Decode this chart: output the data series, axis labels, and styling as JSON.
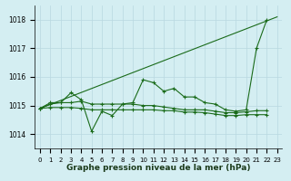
{
  "background_color": "#d4eef2",
  "grid_color": "#b8d8e0",
  "line_color": "#1a6b1a",
  "title": "Graphe pression niveau de la mer (hPa)",
  "ylim": [
    1013.5,
    1018.5
  ],
  "xlim": [
    -0.5,
    23.5
  ],
  "yticks": [
    1014,
    1015,
    1016,
    1017,
    1018
  ],
  "xtick_labels": [
    "0",
    "1",
    "2",
    "3",
    "4",
    "5",
    "6",
    "7",
    "8",
    "9",
    "10",
    "11",
    "12",
    "13",
    "14",
    "15",
    "16",
    "17",
    "18",
    "19",
    "20",
    "21",
    "22",
    "23"
  ],
  "s1_y": [
    1014.9,
    1015.1,
    1015.1,
    1015.45,
    1015.2,
    1014.1,
    1014.8,
    1014.65,
    1015.05,
    1015.1,
    1015.9,
    1015.8,
    1015.5,
    1015.6,
    1015.3,
    1015.3,
    1015.1,
    1015.05,
    1014.85,
    1014.8,
    1014.85,
    1017.0,
    1018.0
  ],
  "s2_y": [
    1014.9,
    1015.05,
    1015.1,
    1015.1,
    1015.15,
    1015.05,
    1015.05,
    1015.05,
    1015.05,
    1015.05,
    1015.0,
    1015.0,
    1014.95,
    1014.9,
    1014.85,
    1014.85,
    1014.85,
    1014.8,
    1014.75,
    1014.75,
    1014.78,
    1014.82,
    1014.82
  ],
  "s3_y": [
    1014.9,
    1014.93,
    1014.93,
    1014.93,
    1014.9,
    1014.85,
    1014.85,
    1014.85,
    1014.85,
    1014.85,
    1014.85,
    1014.85,
    1014.82,
    1014.82,
    1014.77,
    1014.77,
    1014.75,
    1014.7,
    1014.65,
    1014.65,
    1014.68,
    1014.68,
    1014.68
  ],
  "trend_x": [
    0,
    23
  ],
  "trend_y": [
    1014.9,
    1018.1
  ]
}
